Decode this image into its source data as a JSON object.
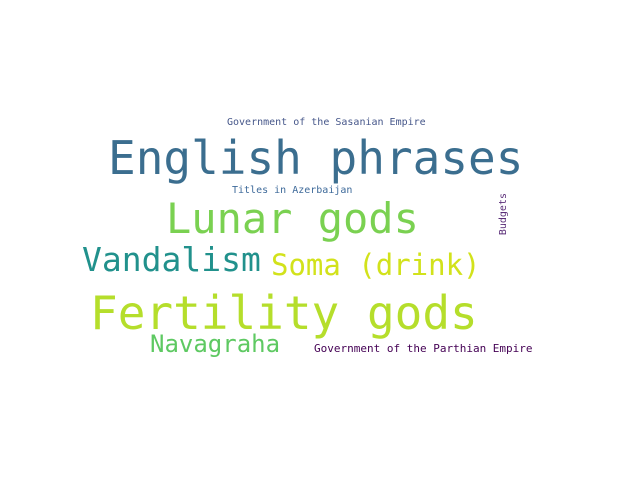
{
  "words": [
    {
      "key": "english",
      "text": "English phrases",
      "color": "#3b6e8f"
    },
    {
      "key": "lunar",
      "text": "Lunar gods",
      "color": "#7ad151"
    },
    {
      "key": "fertility",
      "text": "Fertility gods",
      "color": "#b5de2b"
    },
    {
      "key": "vandalism",
      "text": "Vandalism",
      "color": "#21918c"
    },
    {
      "key": "soma",
      "text": "Soma (drink)",
      "color": "#d2e21b"
    },
    {
      "key": "navagraha",
      "text": "Navagraha",
      "color": "#5ec962"
    },
    {
      "key": "parthian",
      "text": "Government of the Parthian Empire",
      "color": "#440154"
    },
    {
      "key": "sasanian",
      "text": "Government of the Sasanian Empire",
      "color": "#46578a"
    },
    {
      "key": "azerbaijan",
      "text": "Titles in Azerbaijan",
      "color": "#3e6a9a"
    },
    {
      "key": "budgets",
      "text": "Budgets",
      "color": "#5a2d78"
    }
  ]
}
